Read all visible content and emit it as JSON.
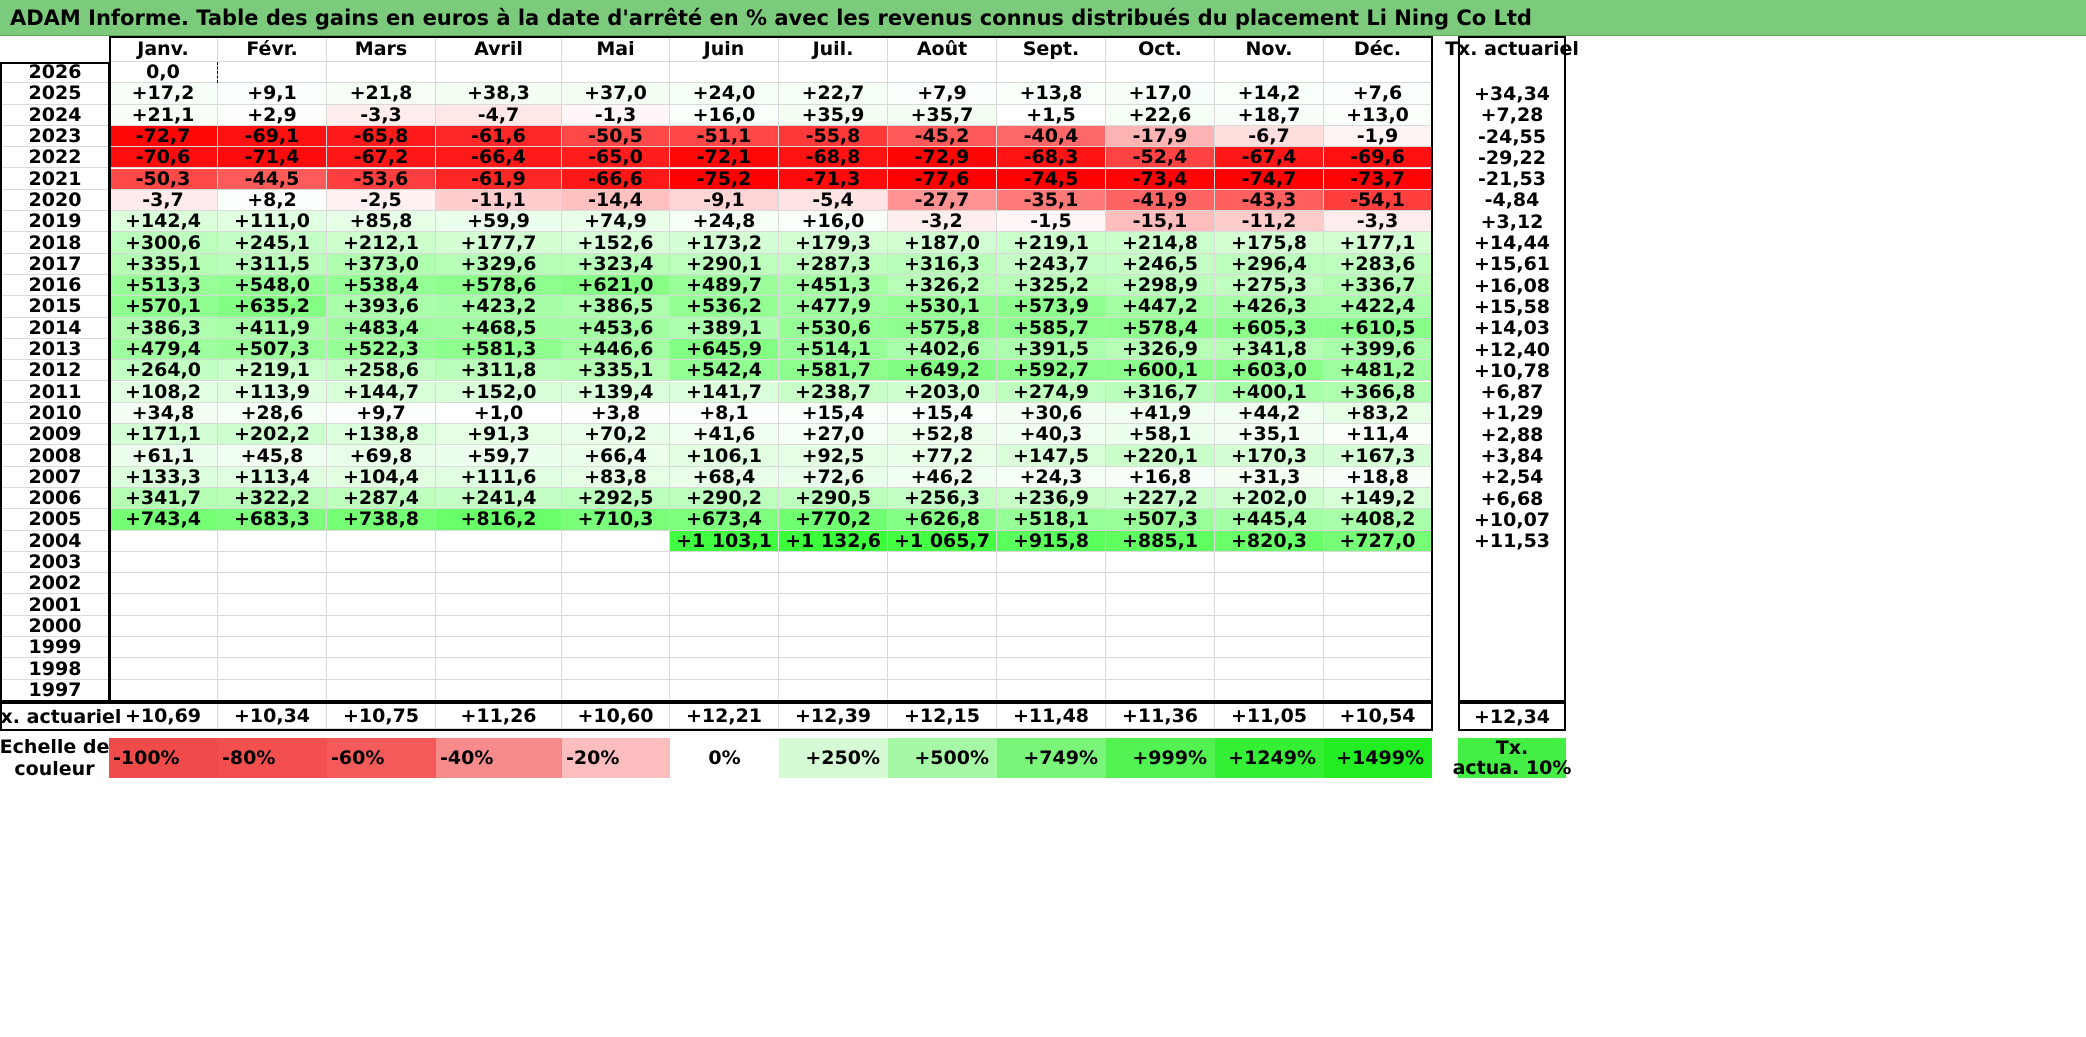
{
  "title": "ADAM Informe. Table des gains en euros à la date d'arrêté en % avec les revenus connus distribués du placement Li Ning Co Ltd",
  "months": [
    "Janv.",
    "Févr.",
    "Mars",
    "Avril",
    "Mai",
    "Juin",
    "Juil.",
    "Août",
    "Sept.",
    "Oct.",
    "Nov.",
    "Déc."
  ],
  "annual_header": "Tx. actuariel",
  "rows": [
    {
      "year": "2026",
      "values": [
        "0,0",
        "",
        "",
        "",
        "",
        "",
        "",
        "",
        "",
        "",
        "",
        ""
      ],
      "annual": ""
    },
    {
      "year": "2025",
      "values": [
        "+17,2",
        "+9,1",
        "+21,8",
        "+38,3",
        "+37,0",
        "+24,0",
        "+22,7",
        "+7,9",
        "+13,8",
        "+17,0",
        "+14,2",
        "+7,6"
      ],
      "annual": "+34,34"
    },
    {
      "year": "2024",
      "values": [
        "+21,1",
        "+2,9",
        "-3,3",
        "-4,7",
        "-1,3",
        "+16,0",
        "+35,9",
        "+35,7",
        "+1,5",
        "+22,6",
        "+18,7",
        "+13,0"
      ],
      "annual": "+7,28"
    },
    {
      "year": "2023",
      "values": [
        "-72,7",
        "-69,1",
        "-65,8",
        "-61,6",
        "-50,5",
        "-51,1",
        "-55,8",
        "-45,2",
        "-40,4",
        "-17,9",
        "-6,7",
        "-1,9"
      ],
      "annual": "-24,55"
    },
    {
      "year": "2022",
      "values": [
        "-70,6",
        "-71,4",
        "-67,2",
        "-66,4",
        "-65,0",
        "-72,1",
        "-68,8",
        "-72,9",
        "-68,3",
        "-52,4",
        "-67,4",
        "-69,6"
      ],
      "annual": "-29,22"
    },
    {
      "year": "2021",
      "values": [
        "-50,3",
        "-44,5",
        "-53,6",
        "-61,9",
        "-66,6",
        "-75,2",
        "-71,3",
        "-77,6",
        "-74,5",
        "-73,4",
        "-74,7",
        "-73,7"
      ],
      "annual": "-21,53"
    },
    {
      "year": "2020",
      "values": [
        "-3,7",
        "+8,2",
        "-2,5",
        "-11,1",
        "-14,4",
        "-9,1",
        "-5,4",
        "-27,7",
        "-35,1",
        "-41,9",
        "-43,3",
        "-54,1"
      ],
      "annual": "-4,84"
    },
    {
      "year": "2019",
      "values": [
        "+142,4",
        "+111,0",
        "+85,8",
        "+59,9",
        "+74,9",
        "+24,8",
        "+16,0",
        "-3,2",
        "-1,5",
        "-15,1",
        "-11,2",
        "-3,3"
      ],
      "annual": "+3,12"
    },
    {
      "year": "2018",
      "values": [
        "+300,6",
        "+245,1",
        "+212,1",
        "+177,7",
        "+152,6",
        "+173,2",
        "+179,3",
        "+187,0",
        "+219,1",
        "+214,8",
        "+175,8",
        "+177,1"
      ],
      "annual": "+14,44"
    },
    {
      "year": "2017",
      "values": [
        "+335,1",
        "+311,5",
        "+373,0",
        "+329,6",
        "+323,4",
        "+290,1",
        "+287,3",
        "+316,3",
        "+243,7",
        "+246,5",
        "+296,4",
        "+283,6"
      ],
      "annual": "+15,61"
    },
    {
      "year": "2016",
      "values": [
        "+513,3",
        "+548,0",
        "+538,4",
        "+578,6",
        "+621,0",
        "+489,7",
        "+451,3",
        "+326,2",
        "+325,2",
        "+298,9",
        "+275,3",
        "+336,7"
      ],
      "annual": "+16,08"
    },
    {
      "year": "2015",
      "values": [
        "+570,1",
        "+635,2",
        "+393,6",
        "+423,2",
        "+386,5",
        "+536,2",
        "+477,9",
        "+530,1",
        "+573,9",
        "+447,2",
        "+426,3",
        "+422,4"
      ],
      "annual": "+15,58"
    },
    {
      "year": "2014",
      "values": [
        "+386,3",
        "+411,9",
        "+483,4",
        "+468,5",
        "+453,6",
        "+389,1",
        "+530,6",
        "+575,8",
        "+585,7",
        "+578,4",
        "+605,3",
        "+610,5"
      ],
      "annual": "+14,03"
    },
    {
      "year": "2013",
      "values": [
        "+479,4",
        "+507,3",
        "+522,3",
        "+581,3",
        "+446,6",
        "+645,9",
        "+514,1",
        "+402,6",
        "+391,5",
        "+326,9",
        "+341,8",
        "+399,6"
      ],
      "annual": "+12,40"
    },
    {
      "year": "2012",
      "values": [
        "+264,0",
        "+219,1",
        "+258,6",
        "+311,8",
        "+335,1",
        "+542,4",
        "+581,7",
        "+649,2",
        "+592,7",
        "+600,1",
        "+603,0",
        "+481,2"
      ],
      "annual": "+10,78"
    },
    {
      "year": "2011",
      "values": [
        "+108,2",
        "+113,9",
        "+144,7",
        "+152,0",
        "+139,4",
        "+141,7",
        "+238,7",
        "+203,0",
        "+274,9",
        "+316,7",
        "+400,1",
        "+366,8"
      ],
      "annual": "+6,87"
    },
    {
      "year": "2010",
      "values": [
        "+34,8",
        "+28,6",
        "+9,7",
        "+1,0",
        "+3,8",
        "+8,1",
        "+15,4",
        "+15,4",
        "+30,6",
        "+41,9",
        "+44,2",
        "+83,2"
      ],
      "annual": "+1,29"
    },
    {
      "year": "2009",
      "values": [
        "+171,1",
        "+202,2",
        "+138,8",
        "+91,3",
        "+70,2",
        "+41,6",
        "+27,0",
        "+52,8",
        "+40,3",
        "+58,1",
        "+35,1",
        "+11,4"
      ],
      "annual": "+2,88"
    },
    {
      "year": "2008",
      "values": [
        "+61,1",
        "+45,8",
        "+69,8",
        "+59,7",
        "+66,4",
        "+106,1",
        "+92,5",
        "+77,2",
        "+147,5",
        "+220,1",
        "+170,3",
        "+167,3"
      ],
      "annual": "+3,84"
    },
    {
      "year": "2007",
      "values": [
        "+133,3",
        "+113,4",
        "+104,4",
        "+111,6",
        "+83,8",
        "+68,4",
        "+72,6",
        "+46,2",
        "+24,3",
        "+16,8",
        "+31,3",
        "+18,8"
      ],
      "annual": "+2,54"
    },
    {
      "year": "2006",
      "values": [
        "+341,7",
        "+322,2",
        "+287,4",
        "+241,4",
        "+292,5",
        "+290,2",
        "+290,5",
        "+256,3",
        "+236,9",
        "+227,2",
        "+202,0",
        "+149,2"
      ],
      "annual": "+6,68"
    },
    {
      "year": "2005",
      "values": [
        "+743,4",
        "+683,3",
        "+738,8",
        "+816,2",
        "+710,3",
        "+673,4",
        "+770,2",
        "+626,8",
        "+518,1",
        "+507,3",
        "+445,4",
        "+408,2"
      ],
      "annual": "+10,07"
    },
    {
      "year": "2004",
      "values": [
        "",
        "",
        "",
        "",
        "",
        "+1 103,1",
        "+1 132,6",
        "+1 065,7",
        "+915,8",
        "+885,1",
        "+820,3",
        "+727,0"
      ],
      "annual": "+11,53"
    },
    {
      "year": "2003",
      "values": [
        "",
        "",
        "",
        "",
        "",
        "",
        "",
        "",
        "",
        "",
        "",
        ""
      ],
      "annual": ""
    },
    {
      "year": "2002",
      "values": [
        "",
        "",
        "",
        "",
        "",
        "",
        "",
        "",
        "",
        "",
        "",
        ""
      ],
      "annual": ""
    },
    {
      "year": "2001",
      "values": [
        "",
        "",
        "",
        "",
        "",
        "",
        "",
        "",
        "",
        "",
        "",
        ""
      ],
      "annual": ""
    },
    {
      "year": "2000",
      "values": [
        "",
        "",
        "",
        "",
        "",
        "",
        "",
        "",
        "",
        "",
        "",
        ""
      ],
      "annual": ""
    },
    {
      "year": "1999",
      "values": [
        "",
        "",
        "",
        "",
        "",
        "",
        "",
        "",
        "",
        "",
        "",
        ""
      ],
      "annual": ""
    },
    {
      "year": "1998",
      "values": [
        "",
        "",
        "",
        "",
        "",
        "",
        "",
        "",
        "",
        "",
        "",
        ""
      ],
      "annual": ""
    },
    {
      "year": "1997",
      "values": [
        "",
        "",
        "",
        "",
        "",
        "",
        "",
        "",
        "",
        "",
        "",
        ""
      ],
      "annual": ""
    }
  ],
  "summary": {
    "label": "Tx. actuariel",
    "values": [
      "+10,69",
      "+10,34",
      "+10,75",
      "+11,26",
      "+10,60",
      "+12,21",
      "+12,39",
      "+12,15",
      "+11,48",
      "+11,36",
      "+11,05",
      "+10,54"
    ],
    "annual": "+12,34"
  },
  "scale": {
    "label_line1": "Echelle de",
    "label_line2": "couleur",
    "items": [
      {
        "label": "-100%",
        "color": "#f04b4b",
        "align": "left"
      },
      {
        "label": "-80%",
        "color": "#f34f4f",
        "align": "left"
      },
      {
        "label": "-60%",
        "color": "#f45a5a",
        "align": "left"
      },
      {
        "label": "-40%",
        "color": "#f78b8b",
        "align": "left"
      },
      {
        "label": "-20%",
        "color": "#fbbdbd",
        "align": "left"
      },
      {
        "label": "0%",
        "color": "#ffffff",
        "align": "center"
      },
      {
        "label": "+250%",
        "color": "#d4fbd4",
        "align": "right"
      },
      {
        "label": "+500%",
        "color": "#a6f8a6",
        "align": "right"
      },
      {
        "label": "+749%",
        "color": "#7af57a",
        "align": "right"
      },
      {
        "label": "+999%",
        "color": "#52f252",
        "align": "right"
      },
      {
        "label": "+1249%",
        "color": "#34ef34",
        "align": "right"
      },
      {
        "label": "+1499%",
        "color": "#22ec22",
        "align": "right"
      }
    ],
    "annual_line1": "Tx.",
    "annual_line2": "actua. 10%",
    "annual_color": "#44ee44"
  }
}
